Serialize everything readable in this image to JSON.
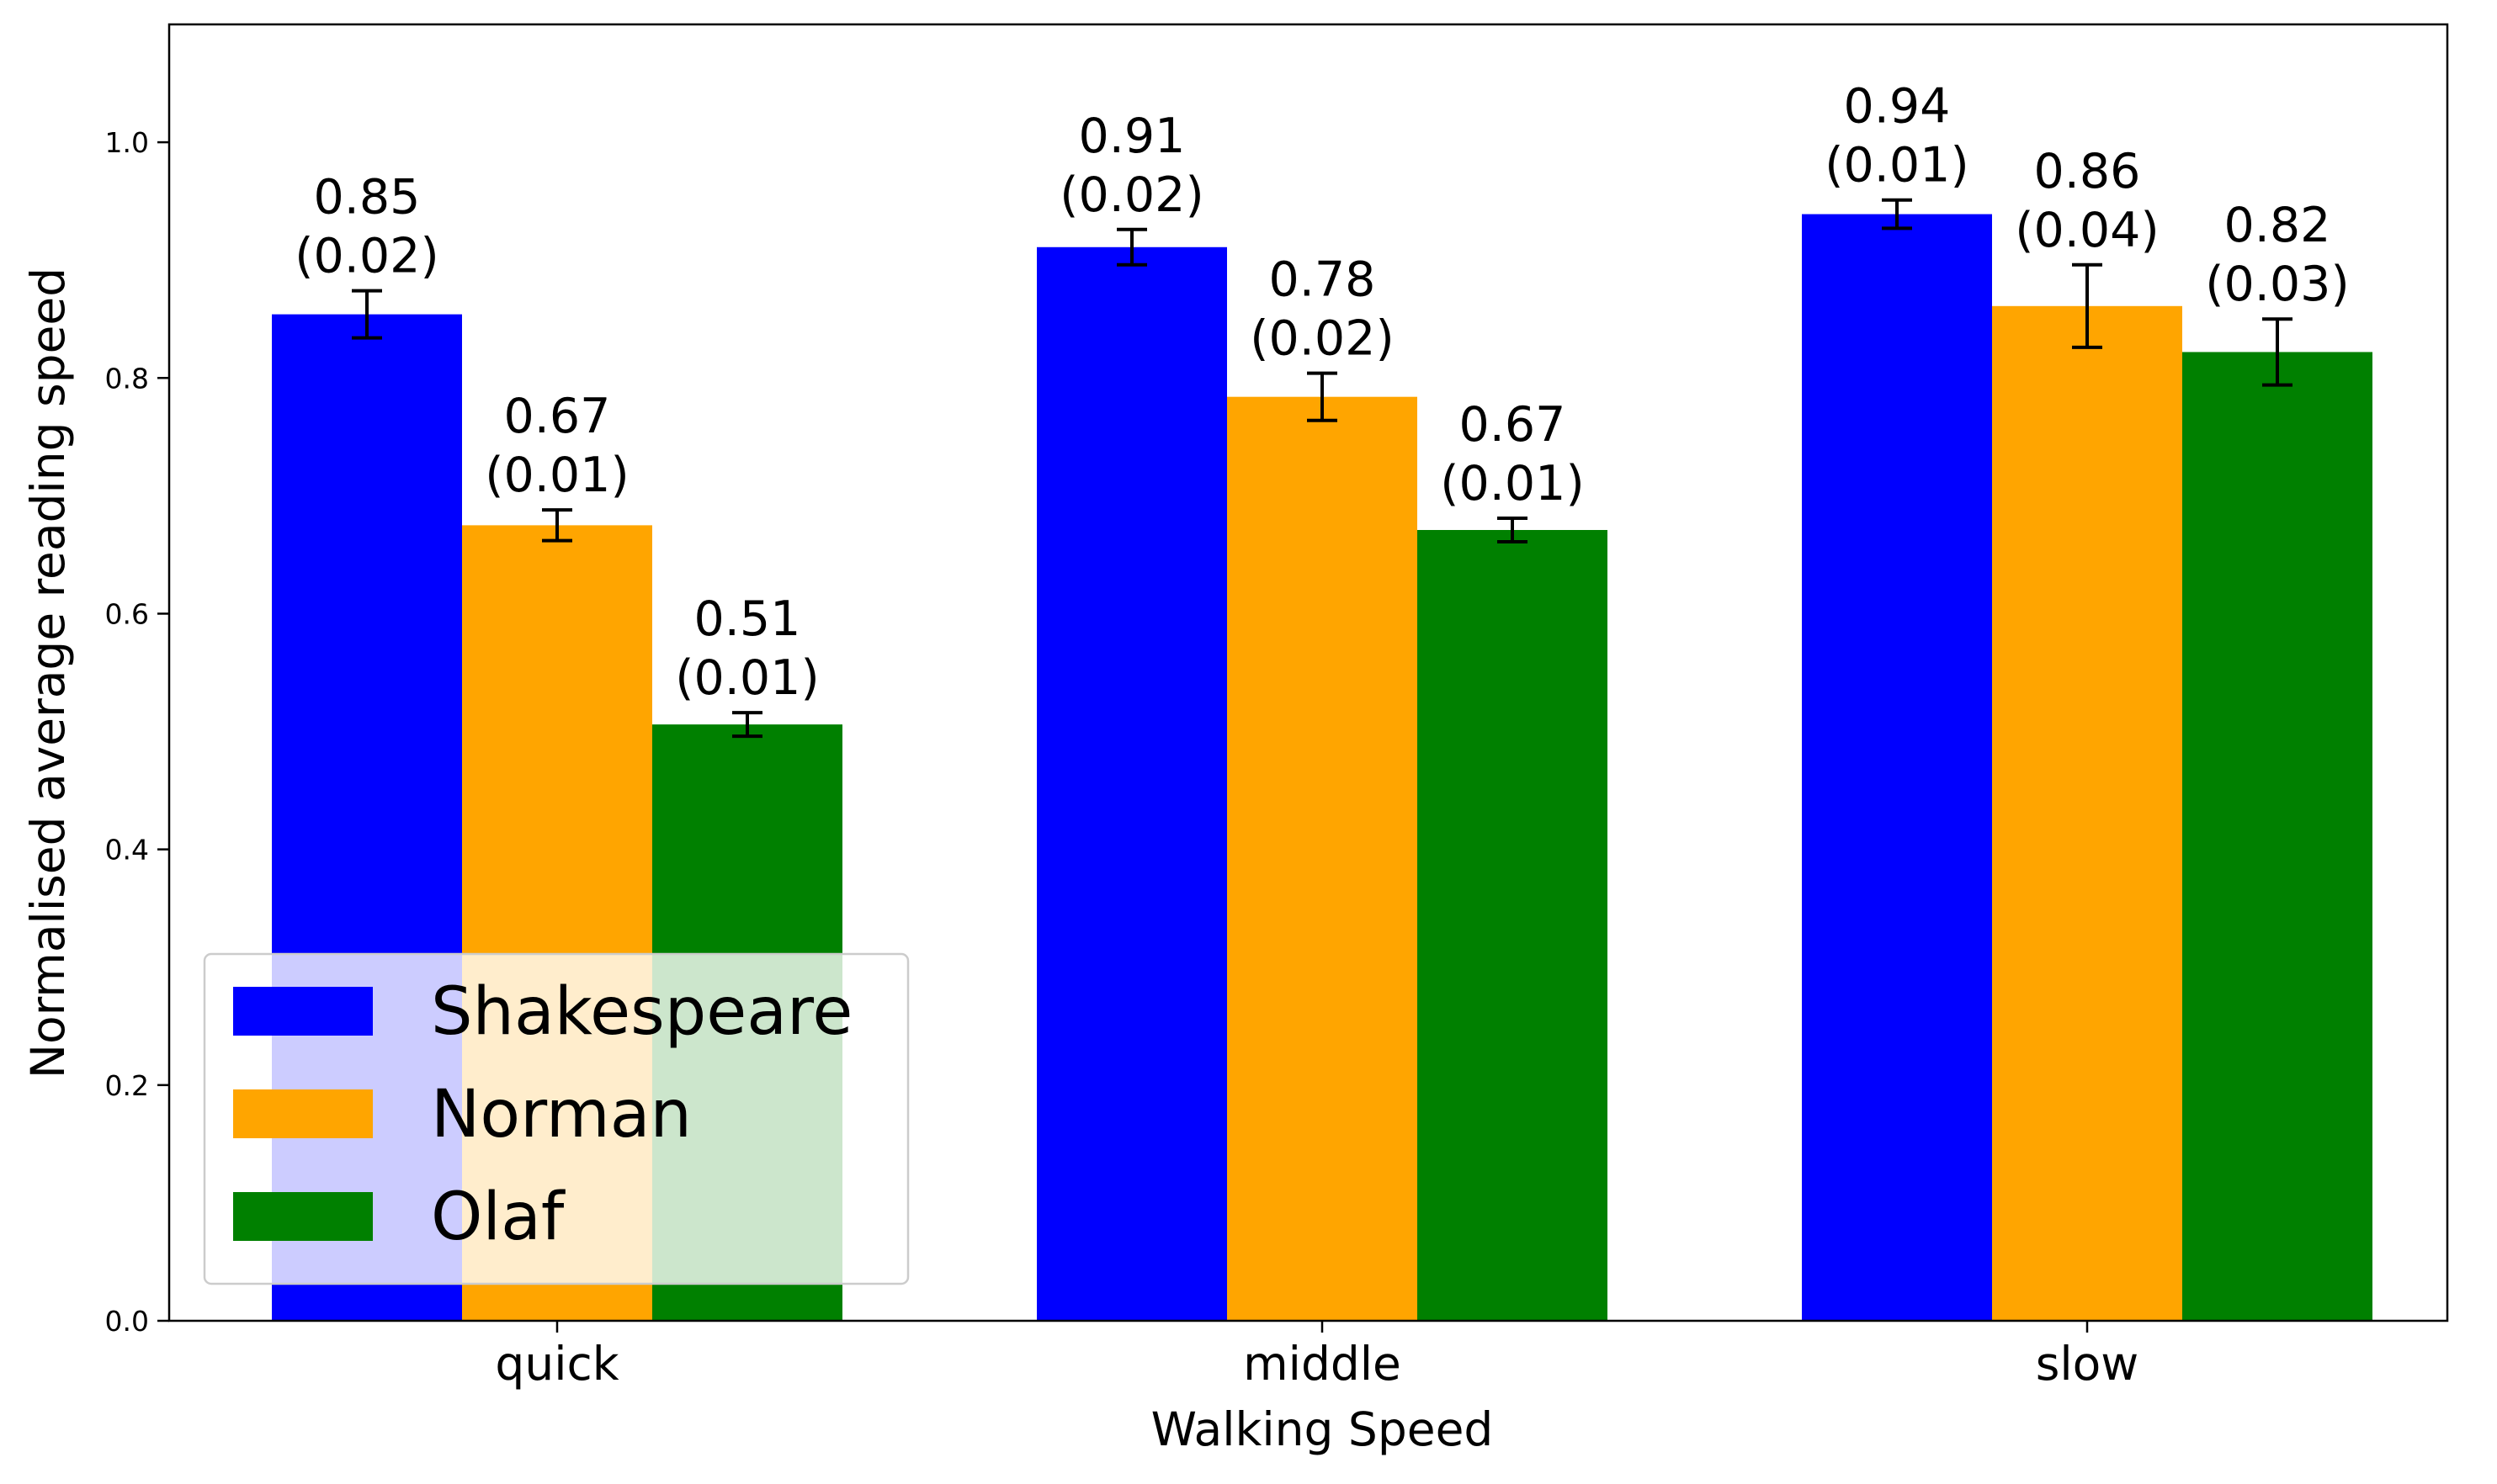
{
  "chart_data": {
    "type": "bar",
    "title": "",
    "xlabel": "Walking Speed",
    "ylabel": "Normalised average reading speed",
    "categories": [
      "quick",
      "middle",
      "slow"
    ],
    "ylim": [
      0,
      1.1
    ],
    "yticks": [
      "0.0",
      "0.2",
      "0.4",
      "0.6",
      "0.8",
      "1.0"
    ],
    "grid": false,
    "legend_position": "lower-left",
    "series": [
      {
        "name": "Shakespeare",
        "color": "#0000ff",
        "values": [
          0.854,
          0.911,
          0.939
        ],
        "errors": [
          0.02,
          0.015,
          0.012
        ],
        "labels": [
          "0.85\n(0.02)",
          "0.91\n(0.02)",
          "0.94\n(0.01)"
        ]
      },
      {
        "name": "Norman",
        "color": "#ffa500",
        "values": [
          0.675,
          0.784,
          0.861
        ],
        "errors": [
          0.013,
          0.02,
          0.035
        ],
        "labels": [
          "0.67\n(0.01)",
          "0.78\n(0.02)",
          "0.86\n(0.04)"
        ]
      },
      {
        "name": "Olaf",
        "color": "#008000",
        "values": [
          0.506,
          0.671,
          0.822
        ],
        "errors": [
          0.01,
          0.01,
          0.028
        ],
        "labels": [
          "0.51\n(0.01)",
          "0.67\n(0.01)",
          "0.82\n(0.03)"
        ]
      }
    ]
  }
}
